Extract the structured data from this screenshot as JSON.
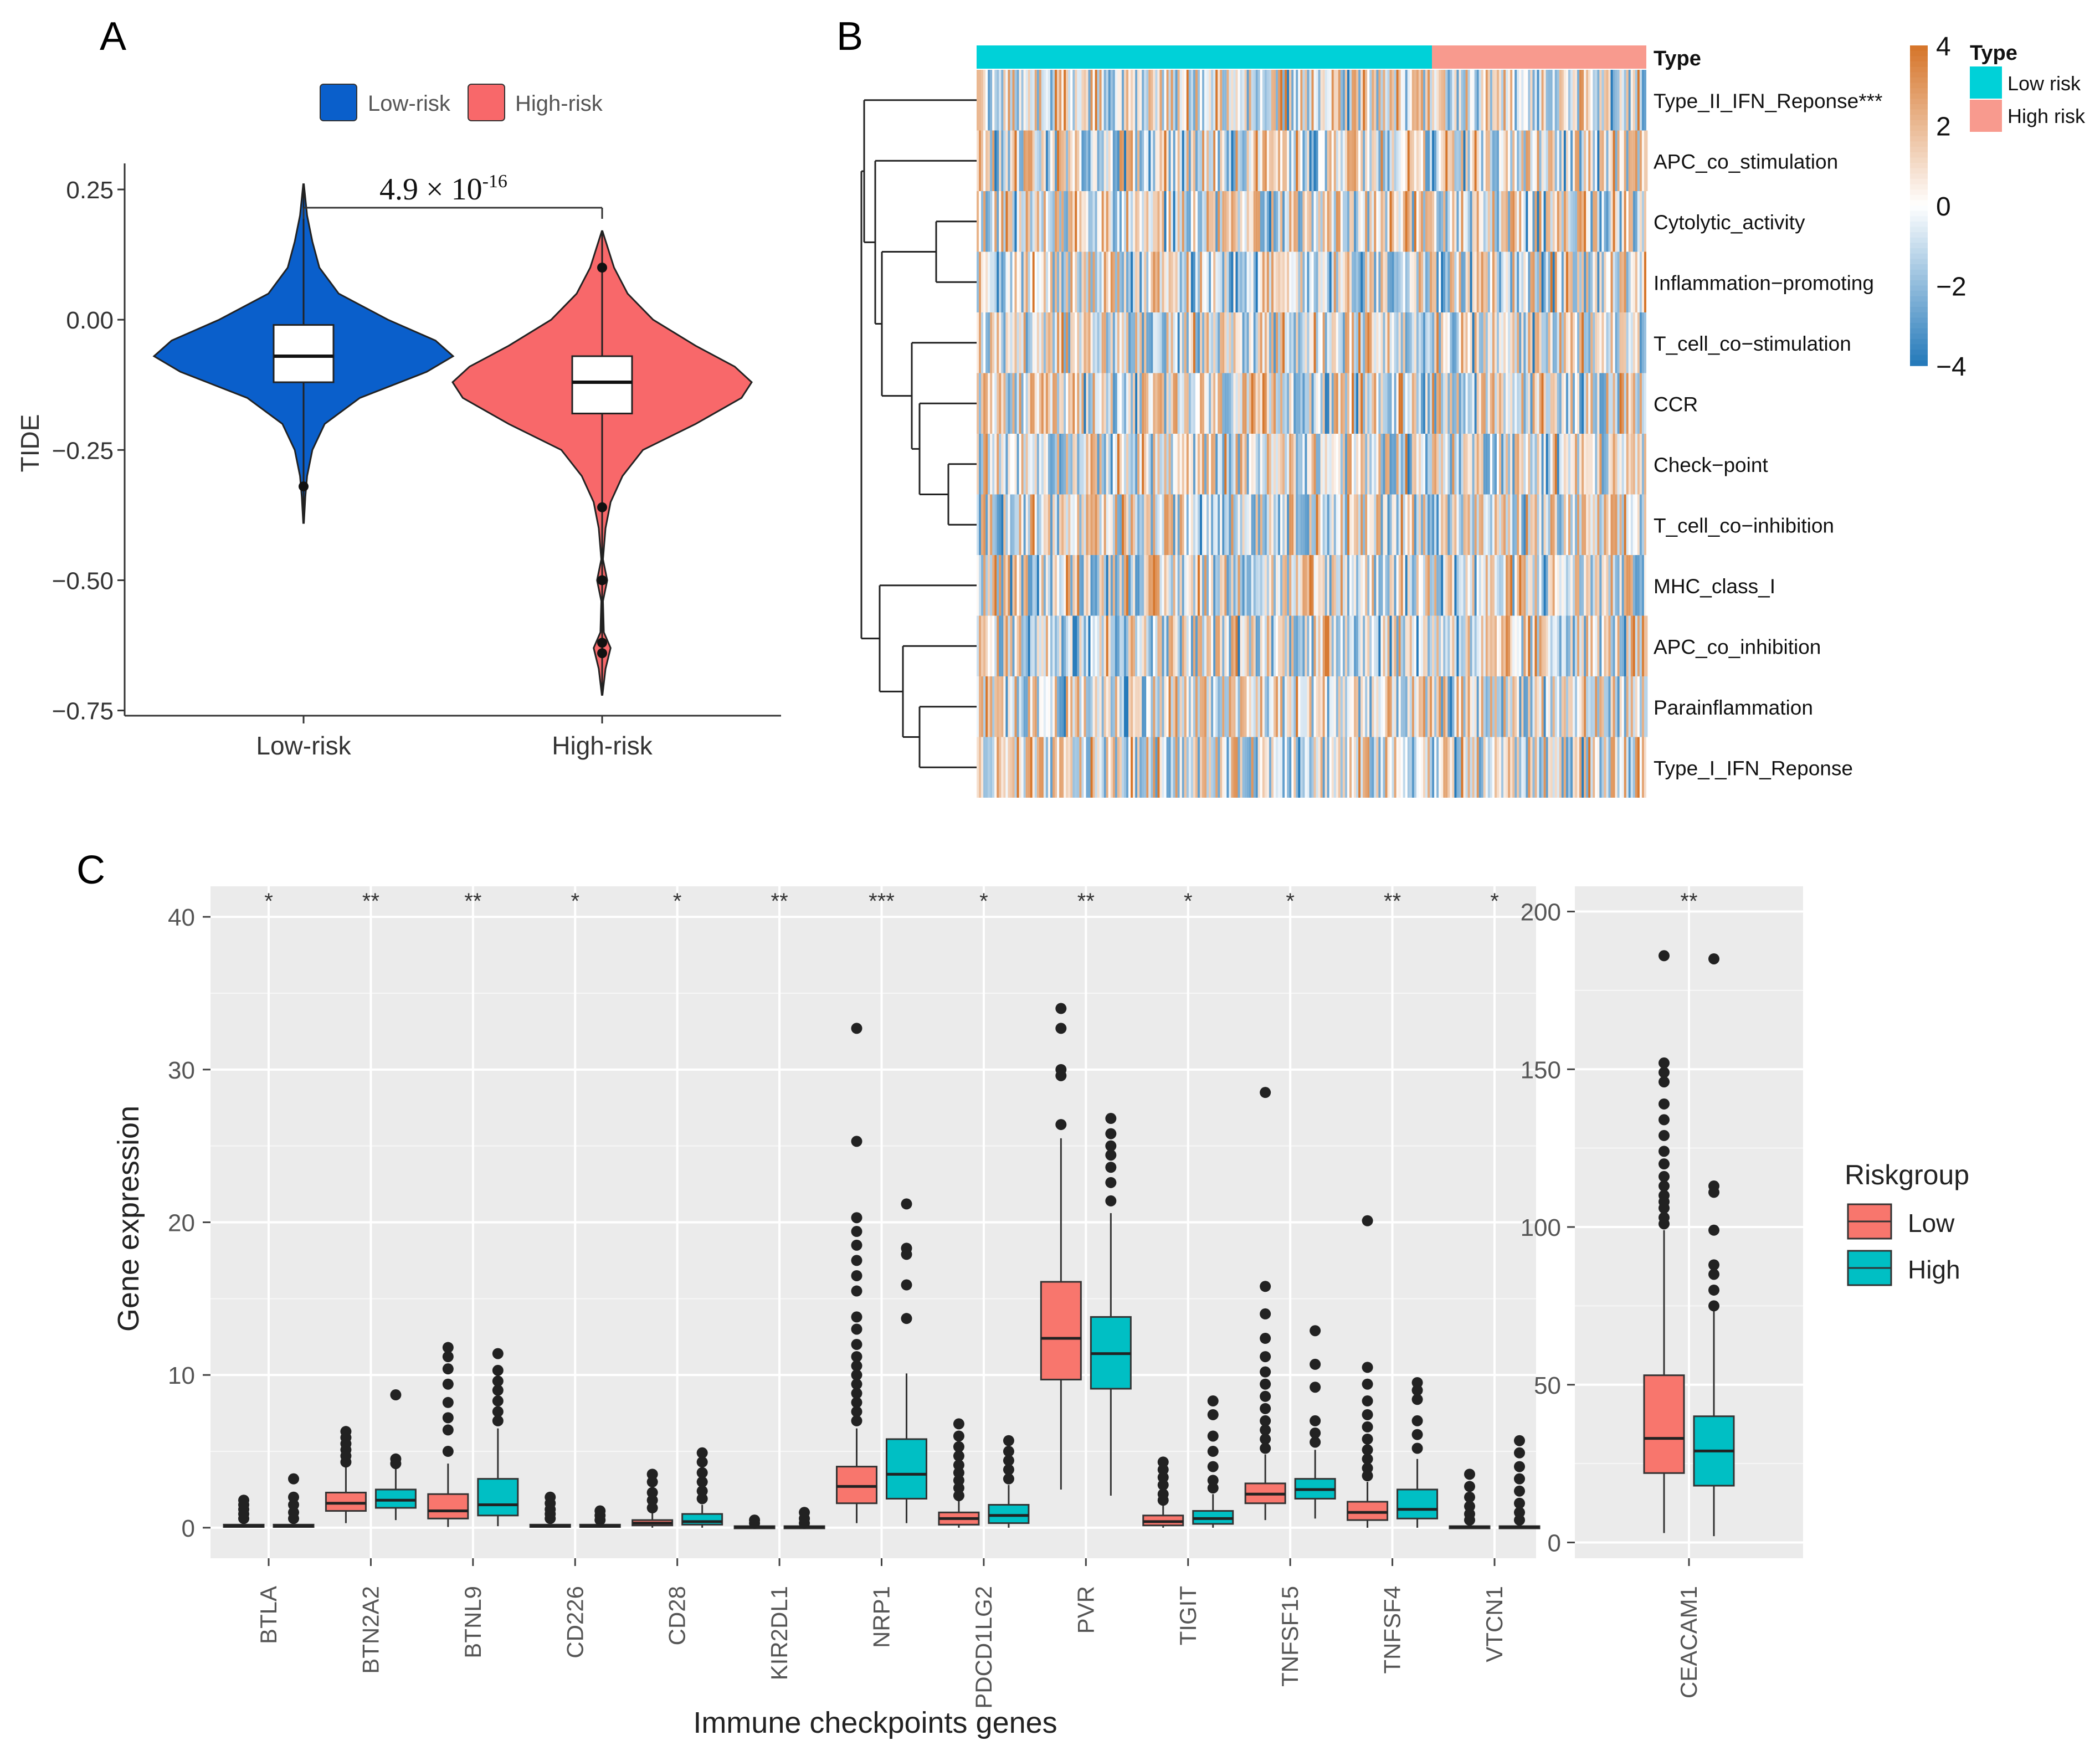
{
  "panel_labels": {
    "a": "A",
    "b": "B",
    "c": "C"
  },
  "colors": {
    "low_blue": "#0a5fcb",
    "high_red": "#f8686a",
    "teal": "#00c1c8",
    "salmon": "#f8766d",
    "heat_pos": "#d2691e",
    "heat_neg": "#1f78b4",
    "type_low": "#00d1d8",
    "type_high": "#f89a8e",
    "grey_panel": "#ebebeb"
  },
  "chart_data": [
    {
      "id": "A",
      "type": "violin",
      "ylabel": "TIDE",
      "ylim": [
        -0.76,
        0.3
      ],
      "yticks": [
        {
          "v": 0.25,
          "label": "0.25"
        },
        {
          "v": 0.0,
          "label": "0.00"
        },
        {
          "v": -0.25,
          "label": "−0.25"
        },
        {
          "v": -0.5,
          "label": "−0.50"
        },
        {
          "v": -0.75,
          "label": "−0.75"
        }
      ],
      "legend": [
        {
          "name": "Low-risk",
          "color": "#0a5fcb"
        },
        {
          "name": "High-risk",
          "color": "#f8686a"
        }
      ],
      "p_value": {
        "base": "4.9 × 10",
        "exp": "-16"
      },
      "groups": [
        {
          "name": "Low-risk",
          "color": "#0a5fcb",
          "min": -0.39,
          "max": 0.26,
          "q1": -0.12,
          "median": -0.07,
          "q3": -0.01,
          "outliers": [
            -0.32
          ],
          "density": [
            [
              -0.39,
              0.002
            ],
            [
              -0.34,
              0.01
            ],
            [
              -0.3,
              0.02
            ],
            [
              -0.25,
              0.05
            ],
            [
              -0.2,
              0.12
            ],
            [
              -0.15,
              0.32
            ],
            [
              -0.1,
              0.7
            ],
            [
              -0.07,
              0.85
            ],
            [
              -0.04,
              0.75
            ],
            [
              0.0,
              0.48
            ],
            [
              0.05,
              0.2
            ],
            [
              0.1,
              0.09
            ],
            [
              0.15,
              0.05
            ],
            [
              0.2,
              0.02
            ],
            [
              0.26,
              0.002
            ]
          ]
        },
        {
          "name": "High-risk",
          "color": "#f8686a",
          "min": -0.72,
          "max": 0.17,
          "q1": -0.18,
          "median": -0.12,
          "q3": -0.07,
          "outliers": [
            0.1,
            -0.36,
            -0.5,
            -0.62,
            -0.64
          ],
          "density": [
            [
              -0.72,
              0.002
            ],
            [
              -0.67,
              0.02
            ],
            [
              -0.63,
              0.05
            ],
            [
              -0.6,
              0.01
            ],
            [
              -0.54,
              0.005
            ],
            [
              -0.5,
              0.03
            ],
            [
              -0.46,
              0.005
            ],
            [
              -0.4,
              0.02
            ],
            [
              -0.35,
              0.05
            ],
            [
              -0.3,
              0.12
            ],
            [
              -0.25,
              0.24
            ],
            [
              -0.2,
              0.55
            ],
            [
              -0.15,
              0.82
            ],
            [
              -0.12,
              0.88
            ],
            [
              -0.09,
              0.78
            ],
            [
              -0.05,
              0.55
            ],
            [
              0.0,
              0.3
            ],
            [
              0.05,
              0.15
            ],
            [
              0.1,
              0.07
            ],
            [
              0.17,
              0.002
            ]
          ]
        }
      ]
    },
    {
      "id": "B",
      "type": "heatmap",
      "type_header": "Type",
      "rows": [
        "Type_II_IFN_Reponse***",
        "APC_co_stimulation",
        "Cytolytic_activity",
        "Inflammation−promoting",
        "T_cell_co−stimulation",
        "CCR",
        "Check−point",
        "T_cell_co−inhibition",
        "MHC_class_I",
        "APC_co_inhibition",
        "Parainflammation",
        "Type_I_IFN_Reponse"
      ],
      "scale_ticks": [
        {
          "v": 4,
          "label": "4"
        },
        {
          "v": 2,
          "label": "2"
        },
        {
          "v": 0,
          "label": "0"
        },
        {
          "v": -2,
          "label": "−2"
        },
        {
          "v": -4,
          "label": "−4"
        }
      ],
      "scale_range": [
        -4,
        4
      ],
      "legend_title": "Type",
      "legend": [
        {
          "name": "Low risk",
          "color": "#00d1d8"
        },
        {
          "name": "High risk",
          "color": "#f89a8e"
        }
      ],
      "low_fraction": 0.68
    },
    {
      "id": "C",
      "type": "boxplot",
      "xlabel": "Immune checkpoints genes",
      "ylabel": "Gene expression",
      "legend_title": "Riskgroup",
      "legend": [
        {
          "name": "Low",
          "color": "#f8766d"
        },
        {
          "name": "High",
          "color": "#00bfc4"
        }
      ],
      "left_panel": {
        "ylim": [
          -2,
          42
        ],
        "yticks": [
          {
            "v": 0,
            "label": "0"
          },
          {
            "v": 10,
            "label": "10"
          },
          {
            "v": 20,
            "label": "20"
          },
          {
            "v": 30,
            "label": "30"
          },
          {
            "v": 40,
            "label": "40"
          }
        ],
        "genes": [
          {
            "name": "BTLA",
            "sig": "*",
            "low": {
              "q1": 0.05,
              "median": 0.1,
              "q3": 0.2,
              "wlo": 0,
              "whi": 0.4,
              "outliers": [
                0.6,
                0.9,
                1.2,
                1.5,
                1.8
              ]
            },
            "high": {
              "q1": 0.05,
              "median": 0.1,
              "q3": 0.2,
              "wlo": 0,
              "whi": 0.4,
              "outliers": [
                0.6,
                1.0,
                1.5,
                2.0,
                3.2
              ]
            }
          },
          {
            "name": "BTN2A2",
            "sig": "**",
            "low": {
              "q1": 1.1,
              "median": 1.6,
              "q3": 2.3,
              "wlo": 0.3,
              "whi": 4.0,
              "outliers": [
                4.3,
                4.7,
                5.1,
                5.5,
                5.9,
                6.3
              ]
            },
            "high": {
              "q1": 1.3,
              "median": 1.8,
              "q3": 2.5,
              "wlo": 0.5,
              "whi": 4.0,
              "outliers": [
                4.2,
                4.5,
                8.7
              ]
            }
          },
          {
            "name": "BTNL9",
            "sig": "**",
            "low": {
              "q1": 0.6,
              "median": 1.1,
              "q3": 2.2,
              "wlo": 0.05,
              "whi": 4.2,
              "outliers": [
                5,
                6.4,
                7.2,
                8.2,
                9.4,
                10.4,
                11.2,
                11.8
              ]
            },
            "high": {
              "q1": 0.8,
              "median": 1.5,
              "q3": 3.2,
              "wlo": 0.1,
              "whi": 6.5,
              "outliers": [
                7,
                7.6,
                8.3,
                9,
                9.6,
                10.3,
                11.4
              ]
            }
          },
          {
            "name": "CD226",
            "sig": "*",
            "low": {
              "q1": 0.05,
              "median": 0.1,
              "q3": 0.2,
              "wlo": 0,
              "whi": 0.4,
              "outliers": [
                0.6,
                0.9,
                1.2,
                1.6,
                2.0
              ]
            },
            "high": {
              "q1": 0.05,
              "median": 0.1,
              "q3": 0.2,
              "wlo": 0,
              "whi": 0.3,
              "outliers": [
                0.5,
                0.8,
                1.1
              ]
            }
          },
          {
            "name": "CD28",
            "sig": "*",
            "low": {
              "q1": 0.15,
              "median": 0.3,
              "q3": 0.5,
              "wlo": 0,
              "whi": 1.0,
              "outliers": [
                1.3,
                1.8,
                2.3,
                3.0,
                3.5
              ]
            },
            "high": {
              "q1": 0.2,
              "median": 0.4,
              "q3": 0.9,
              "wlo": 0,
              "whi": 1.5,
              "outliers": [
                1.9,
                2.4,
                3.0,
                3.6,
                4.3,
                4.9
              ]
            }
          },
          {
            "name": "KIR2DL1",
            "sig": "**",
            "low": {
              "q1": 0.02,
              "median": 0.05,
              "q3": 0.1,
              "wlo": 0,
              "whi": 0.2,
              "outliers": [
                0.3,
                0.5
              ]
            },
            "high": {
              "q1": 0.02,
              "median": 0.05,
              "q3": 0.1,
              "wlo": 0,
              "whi": 0.2,
              "outliers": [
                0.3,
                0.6,
                1.0
              ]
            }
          },
          {
            "name": "NRP1",
            "sig": "***",
            "low": {
              "q1": 1.6,
              "median": 2.7,
              "q3": 4.0,
              "wlo": 0.3,
              "whi": 6.5,
              "outliers": [
                7,
                7.6,
                8.2,
                8.8,
                9.4,
                10,
                10.6,
                11.2,
                12,
                13,
                13.8,
                15.5,
                16.5,
                17.5,
                18.5,
                19.4,
                20.3,
                25.3,
                32.7
              ]
            },
            "high": {
              "q1": 1.9,
              "median": 3.5,
              "q3": 5.8,
              "wlo": 0.3,
              "whi": 10.1,
              "outliers": [
                13.7,
                15.9,
                17.9,
                18.3,
                21.2
              ]
            }
          },
          {
            "name": "PDCD1LG2",
            "sig": "*",
            "low": {
              "q1": 0.2,
              "median": 0.6,
              "q3": 1.0,
              "wlo": 0,
              "whi": 1.8,
              "outliers": [
                2.1,
                2.6,
                3.1,
                3.6,
                4.1,
                4.7,
                5.3,
                6.0,
                6.8
              ]
            },
            "high": {
              "q1": 0.3,
              "median": 0.8,
              "q3": 1.5,
              "wlo": 0,
              "whi": 2.8,
              "outliers": [
                3.2,
                3.8,
                4.4,
                5.0,
                5.7
              ]
            }
          },
          {
            "name": "PVR",
            "sig": "**",
            "low": {
              "q1": 9.7,
              "median": 12.4,
              "q3": 16.1,
              "wlo": 2.5,
              "whi": 25.5,
              "outliers": [
                26.4,
                29.6,
                30.0,
                32.7,
                34.0
              ]
            },
            "high": {
              "q1": 9.1,
              "median": 11.4,
              "q3": 13.8,
              "wlo": 2.1,
              "whi": 20.6,
              "outliers": [
                21.4,
                22.6,
                23.6,
                24.4,
                25.0,
                25.8,
                26.8
              ]
            }
          },
          {
            "name": "TIGIT",
            "sig": "*",
            "low": {
              "q1": 0.15,
              "median": 0.4,
              "q3": 0.8,
              "wlo": 0,
              "whi": 1.5,
              "outliers": [
                1.8,
                2.2,
                2.8,
                3.3,
                3.8,
                4.3
              ]
            },
            "high": {
              "q1": 0.25,
              "median": 0.6,
              "q3": 1.1,
              "wlo": 0,
              "whi": 2.2,
              "outliers": [
                2.6,
                3.1,
                4.0,
                5.0,
                6.0,
                7.4,
                8.3
              ]
            }
          },
          {
            "name": "TNFSF15",
            "sig": "*",
            "low": {
              "q1": 1.6,
              "median": 2.2,
              "q3": 2.9,
              "wlo": 0.5,
              "whi": 4.8,
              "outliers": [
                5.2,
                5.8,
                6.4,
                7,
                7.8,
                8.6,
                9.4,
                10.2,
                11.2,
                12.4,
                14.0,
                15.8,
                28.5
              ]
            },
            "high": {
              "q1": 1.9,
              "median": 2.5,
              "q3": 3.2,
              "wlo": 0.6,
              "whi": 5.1,
              "outliers": [
                5.6,
                6.2,
                7.0,
                9.2,
                10.7,
                12.9
              ]
            }
          },
          {
            "name": "TNFSF4",
            "sig": "**",
            "low": {
              "q1": 0.5,
              "median": 1.0,
              "q3": 1.7,
              "wlo": 0,
              "whi": 3.0,
              "outliers": [
                3.4,
                3.9,
                4.5,
                5.1,
                5.8,
                6.6,
                7.4,
                8.3,
                9.4,
                10.5,
                20.1
              ]
            },
            "high": {
              "q1": 0.6,
              "median": 1.2,
              "q3": 2.5,
              "wlo": 0,
              "whi": 4.5,
              "outliers": [
                5.2,
                6.1,
                7.0,
                8.4,
                9.0,
                9.5
              ]
            }
          },
          {
            "name": "VTCN1",
            "sig": "*",
            "low": {
              "q1": 0.02,
              "median": 0.05,
              "q3": 0.1,
              "wlo": 0,
              "whi": 0.2,
              "outliers": [
                0.5,
                0.9,
                1.4,
                2.0,
                2.7,
                3.5
              ]
            },
            "high": {
              "q1": 0.02,
              "median": 0.05,
              "q3": 0.1,
              "wlo": 0,
              "whi": 0.2,
              "outliers": [
                0.5,
                1.0,
                1.6,
                2.4,
                3.2,
                4.0,
                4.9,
                5.7
              ]
            }
          }
        ]
      },
      "right_panel": {
        "ylim": [
          -5,
          208
        ],
        "yticks": [
          {
            "v": 0,
            "label": "0"
          },
          {
            "v": 50,
            "label": "50"
          },
          {
            "v": 100,
            "label": "100"
          },
          {
            "v": 150,
            "label": "150"
          },
          {
            "v": 200,
            "label": "200"
          }
        ],
        "genes": [
          {
            "name": "CEACAM1",
            "sig": "**",
            "low": {
              "q1": 22,
              "median": 33,
              "q3": 53,
              "wlo": 3,
              "whi": 99,
              "outliers": [
                101,
                103,
                106,
                108,
                110,
                113,
                116,
                120,
                124,
                129,
                134,
                139,
                146,
                149,
                152,
                186
              ]
            },
            "high": {
              "q1": 18,
              "median": 29,
              "q3": 40,
              "wlo": 2,
              "whi": 74,
              "outliers": [
                75,
                80,
                85,
                88,
                99,
                111,
                113,
                185
              ]
            }
          }
        ]
      }
    }
  ]
}
